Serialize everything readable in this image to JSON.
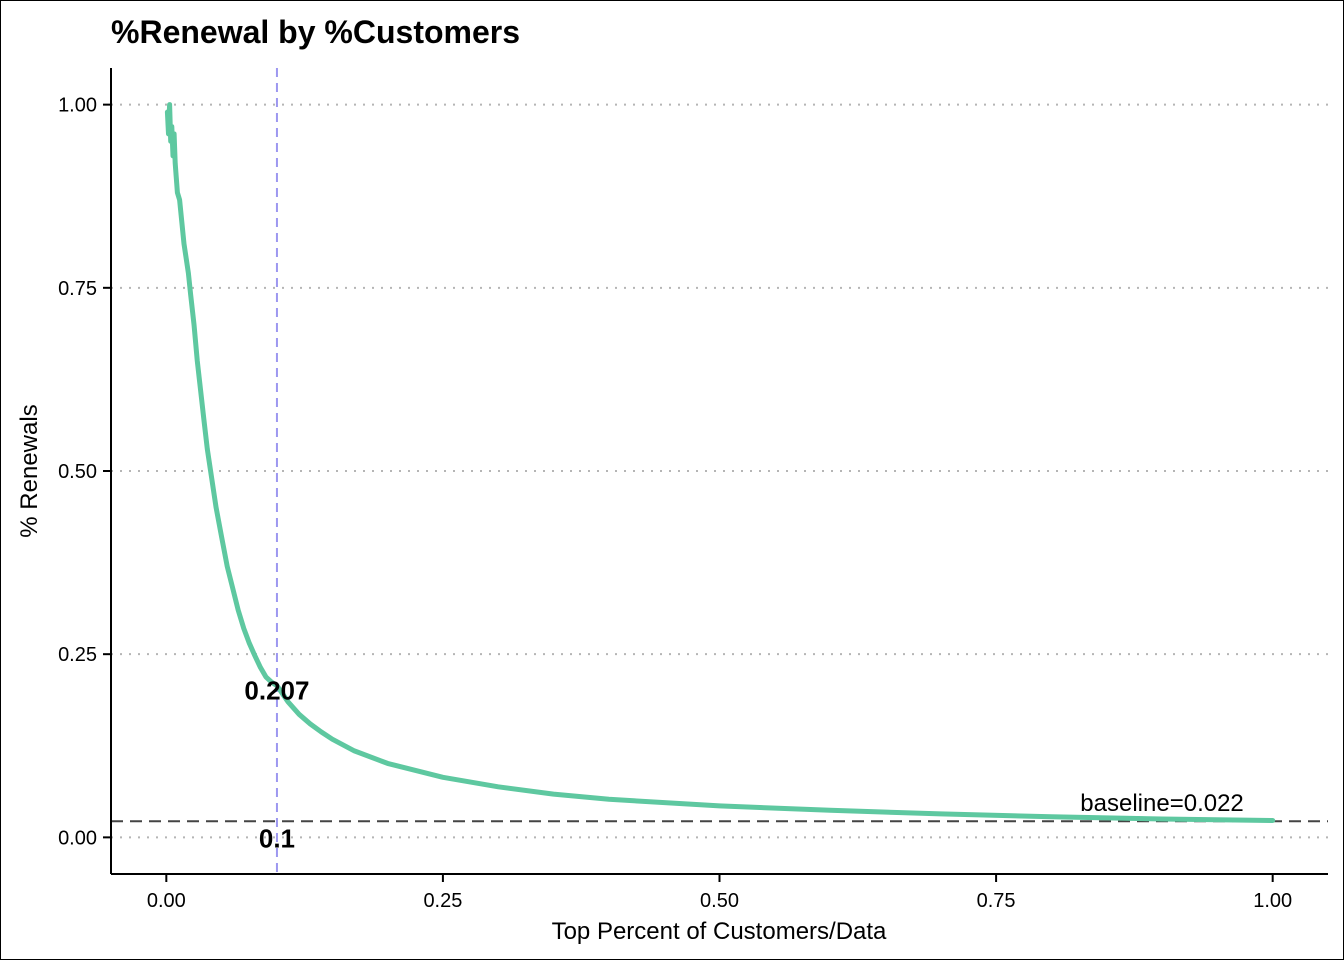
{
  "chart_data": {
    "type": "line",
    "title": "%Renewal by %Customers",
    "xlabel": "Top Percent of Customers/Data",
    "ylabel": "% Renewals",
    "xlim": [
      -0.05,
      1.05
    ],
    "ylim": [
      -0.05,
      1.05
    ],
    "x_ticks": [
      0,
      0.25,
      0.5,
      0.75,
      1
    ],
    "x_tick_labels": [
      "0.00",
      "0.25",
      "0.50",
      "0.75",
      "1.00"
    ],
    "y_ticks": [
      0,
      0.25,
      0.5,
      0.75,
      1
    ],
    "y_tick_labels": [
      "0.00",
      "0.25",
      "0.50",
      "0.75",
      "1.00"
    ],
    "grid": "horizontal dotted",
    "series": [
      {
        "color": "#5ec8a0",
        "x": [
          0.001,
          0.002,
          0.003,
          0.004,
          0.005,
          0.006,
          0.007,
          0.008,
          0.009,
          0.01,
          0.012,
          0.014,
          0.016,
          0.018,
          0.02,
          0.022,
          0.025,
          0.028,
          0.031,
          0.034,
          0.037,
          0.04,
          0.045,
          0.05,
          0.055,
          0.06,
          0.065,
          0.07,
          0.075,
          0.08,
          0.085,
          0.09,
          0.095,
          0.1,
          0.11,
          0.12,
          0.13,
          0.14,
          0.15,
          0.17,
          0.2,
          0.25,
          0.3,
          0.35,
          0.4,
          0.5,
          0.6,
          0.7,
          0.8,
          0.9,
          1.0
        ],
        "y": [
          0.99,
          0.96,
          1.0,
          0.95,
          0.97,
          0.93,
          0.96,
          0.92,
          0.9,
          0.88,
          0.87,
          0.84,
          0.81,
          0.79,
          0.77,
          0.74,
          0.7,
          0.65,
          0.61,
          0.57,
          0.53,
          0.5,
          0.45,
          0.41,
          0.37,
          0.34,
          0.31,
          0.285,
          0.265,
          0.248,
          0.232,
          0.219,
          0.212,
          0.207,
          0.185,
          0.168,
          0.155,
          0.144,
          0.134,
          0.118,
          0.101,
          0.082,
          0.069,
          0.059,
          0.052,
          0.043,
          0.037,
          0.032,
          0.028,
          0.025,
          0.023
        ]
      }
    ],
    "vline": {
      "x": 0.1,
      "color": "#9d97f0"
    },
    "hline": {
      "y": 0.022,
      "color": "#444444"
    },
    "annotations": {
      "vline_label": "0.1",
      "point_label": "0.207",
      "baseline_label": "baseline=0.022"
    }
  }
}
